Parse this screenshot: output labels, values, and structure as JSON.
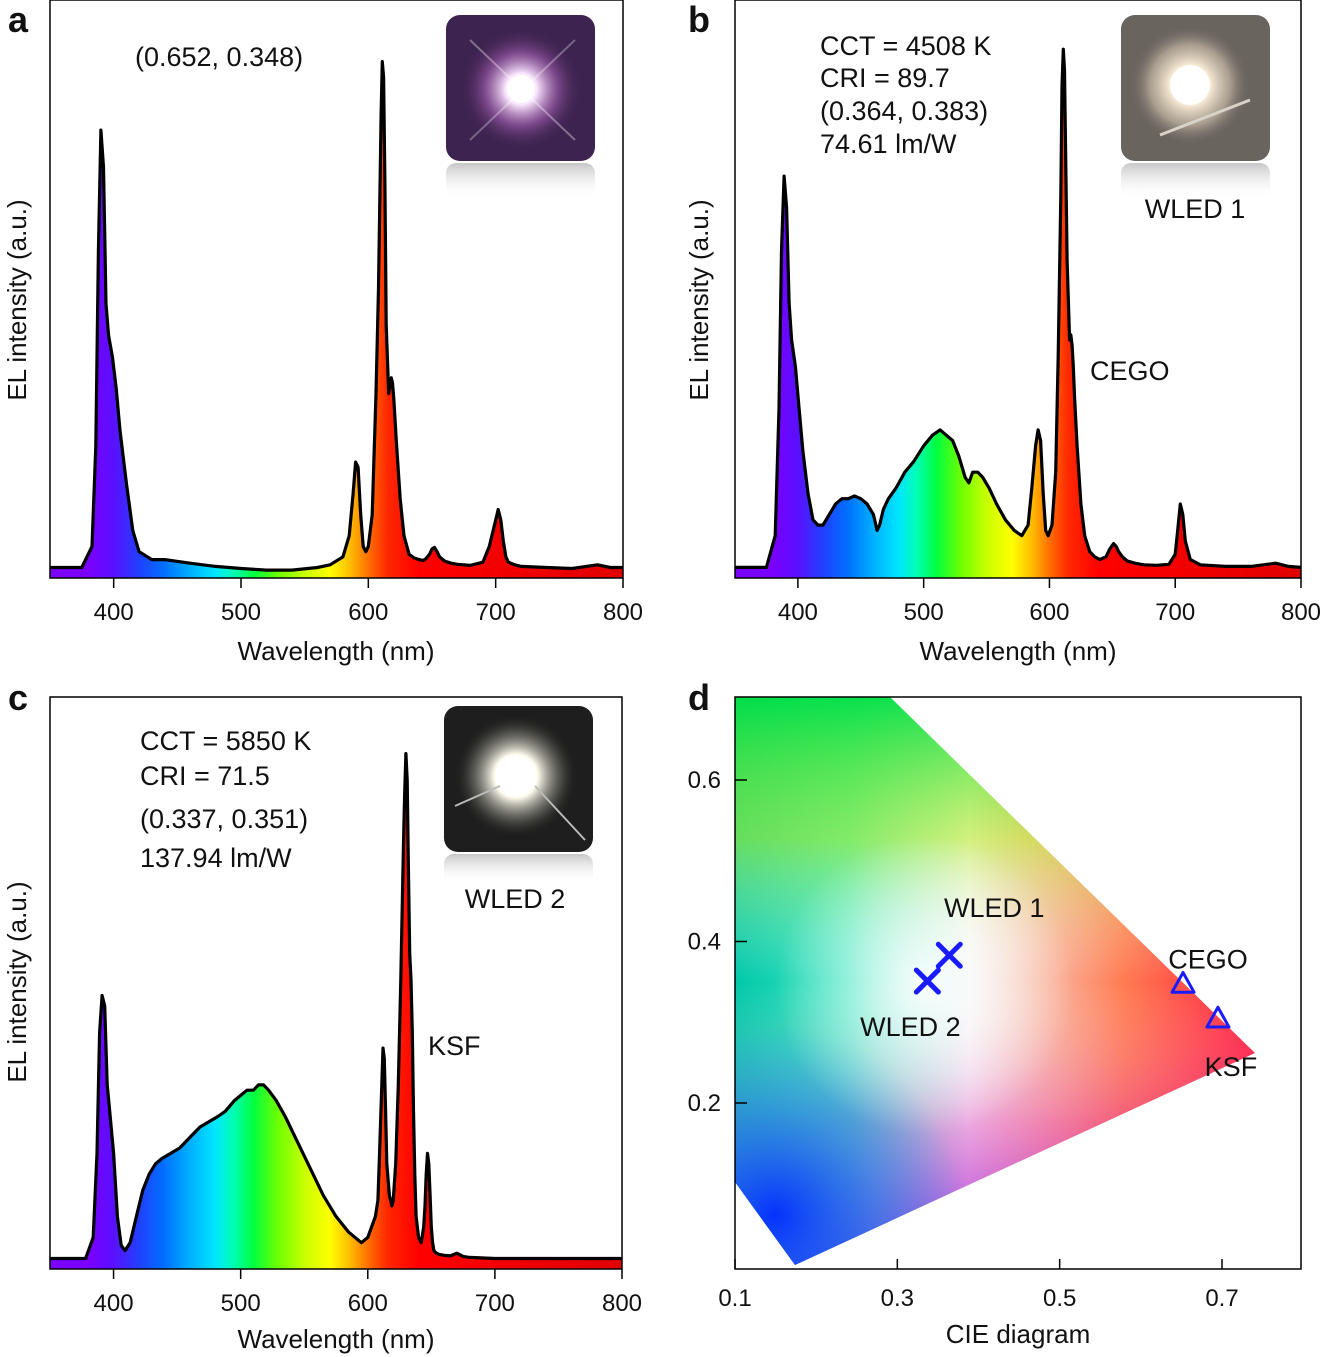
{
  "figure": {
    "panels": [
      {
        "id": "a",
        "label": "a"
      },
      {
        "id": "b",
        "label": "b"
      },
      {
        "id": "c",
        "label": "c"
      },
      {
        "id": "d",
        "label": "d"
      }
    ]
  },
  "chart_data": [
    {
      "panel": "a",
      "type": "line",
      "title": "",
      "xlabel": "Wavelength (nm)",
      "ylabel": "EL intensity (a.u.)",
      "xlim": [
        350,
        800
      ],
      "ylim": [
        0,
        1.04
      ],
      "xticks": [
        400,
        500,
        600,
        700,
        800
      ],
      "fill": "spectral",
      "annotations": [
        "(0.652, 0.348)"
      ],
      "inset": {
        "description": "LED photo (pink-purple emission)",
        "caption": ""
      },
      "series": [
        {
          "name": "EL spectrum",
          "x": [
            350,
            375,
            383,
            386,
            388,
            390,
            392,
            394,
            396,
            399,
            402,
            405,
            410,
            415,
            420,
            430,
            440,
            460,
            480,
            500,
            520,
            540,
            560,
            570,
            580,
            585,
            588,
            590,
            592,
            594,
            596,
            598,
            600,
            603,
            606,
            608,
            610,
            611,
            612,
            613,
            614,
            616,
            618,
            619,
            620,
            622,
            625,
            628,
            632,
            636,
            640,
            643,
            645,
            648,
            650,
            652,
            654,
            656,
            660,
            665,
            670,
            680,
            690,
            695,
            700,
            702,
            704,
            706,
            708,
            710,
            715,
            720,
            740,
            760,
            780,
            790,
            800
          ],
          "y": [
            0.02,
            0.02,
            0.06,
            0.25,
            0.62,
            0.85,
            0.78,
            0.52,
            0.46,
            0.42,
            0.36,
            0.28,
            0.18,
            0.09,
            0.05,
            0.035,
            0.035,
            0.028,
            0.022,
            0.018,
            0.015,
            0.015,
            0.02,
            0.025,
            0.04,
            0.08,
            0.16,
            0.22,
            0.21,
            0.12,
            0.06,
            0.05,
            0.06,
            0.12,
            0.35,
            0.55,
            0.88,
            0.98,
            0.95,
            0.75,
            0.48,
            0.35,
            0.38,
            0.37,
            0.34,
            0.26,
            0.15,
            0.08,
            0.045,
            0.038,
            0.035,
            0.033,
            0.036,
            0.045,
            0.055,
            0.058,
            0.05,
            0.04,
            0.032,
            0.028,
            0.026,
            0.024,
            0.03,
            0.06,
            0.11,
            0.13,
            0.11,
            0.07,
            0.04,
            0.03,
            0.025,
            0.022,
            0.02,
            0.018,
            0.025,
            0.02,
            0.02
          ]
        }
      ]
    },
    {
      "panel": "b",
      "type": "line",
      "title": "",
      "xlabel": "Wavelength (nm)",
      "ylabel": "EL intensity (a.u.)",
      "xlim": [
        350,
        800
      ],
      "ylim": [
        0,
        1.04
      ],
      "xticks": [
        400,
        500,
        600,
        700,
        800
      ],
      "fill": "spectral",
      "annotations": [
        "CCT = 4508 K",
        "CRI = 89.7",
        "(0.364, 0.383)",
        "74.61 lm/W",
        "CEGO"
      ],
      "inset": {
        "description": "LED photo (warm white emission)",
        "caption": "WLED 1"
      },
      "series": [
        {
          "name": "EL spectrum",
          "x": [
            350,
            375,
            382,
            385,
            387,
            389,
            391,
            393,
            395,
            398,
            401,
            404,
            408,
            412,
            416,
            420,
            425,
            430,
            435,
            440,
            445,
            450,
            455,
            460,
            463,
            465,
            468,
            472,
            478,
            485,
            492,
            500,
            507,
            513,
            518,
            523,
            528,
            533,
            536,
            539,
            543,
            547,
            552,
            558,
            565,
            572,
            578,
            583,
            586,
            589,
            591,
            593,
            595,
            597,
            599,
            602,
            605,
            607,
            609,
            610,
            611,
            612,
            614,
            616,
            617,
            618,
            619,
            620,
            622,
            625,
            628,
            632,
            636,
            640,
            645,
            648,
            651,
            653,
            655,
            658,
            662,
            668,
            675,
            685,
            695,
            700,
            702,
            704,
            706,
            708,
            712,
            720,
            740,
            760,
            780,
            790,
            800
          ],
          "y": [
            0.02,
            0.02,
            0.08,
            0.32,
            0.62,
            0.76,
            0.7,
            0.52,
            0.45,
            0.4,
            0.32,
            0.24,
            0.16,
            0.11,
            0.1,
            0.1,
            0.12,
            0.14,
            0.15,
            0.15,
            0.155,
            0.15,
            0.14,
            0.12,
            0.09,
            0.1,
            0.13,
            0.15,
            0.17,
            0.2,
            0.22,
            0.25,
            0.27,
            0.28,
            0.27,
            0.26,
            0.23,
            0.19,
            0.18,
            0.2,
            0.2,
            0.19,
            0.17,
            0.14,
            0.11,
            0.09,
            0.08,
            0.1,
            0.17,
            0.25,
            0.28,
            0.26,
            0.16,
            0.09,
            0.08,
            0.1,
            0.2,
            0.42,
            0.72,
            0.93,
            1.0,
            0.96,
            0.6,
            0.45,
            0.46,
            0.44,
            0.4,
            0.34,
            0.25,
            0.14,
            0.08,
            0.05,
            0.04,
            0.035,
            0.04,
            0.055,
            0.065,
            0.06,
            0.05,
            0.04,
            0.032,
            0.028,
            0.025,
            0.024,
            0.026,
            0.045,
            0.09,
            0.14,
            0.12,
            0.07,
            0.035,
            0.025,
            0.022,
            0.022,
            0.028,
            0.022,
            0.02
          ]
        }
      ]
    },
    {
      "panel": "c",
      "type": "line",
      "title": "",
      "xlabel": "Wavelength (nm)",
      "ylabel": "EL intensity (a.u.)",
      "xlim": [
        350,
        800
      ],
      "ylim": [
        0,
        1.04
      ],
      "xticks": [
        400,
        500,
        600,
        700,
        800
      ],
      "fill": "spectral",
      "annotations": [
        "CCT = 5850 K",
        "CRI = 71.5",
        "(0.337, 0.351)",
        "137.94 lm/W",
        "KSF"
      ],
      "inset": {
        "description": "LED photo (cool white emission)",
        "caption": "WLED 2"
      },
      "series": [
        {
          "name": "EL spectrum",
          "x": [
            350,
            378,
            384,
            387,
            389,
            391,
            393,
            395,
            397,
            400,
            403,
            406,
            409,
            413,
            418,
            423,
            428,
            433,
            438,
            445,
            452,
            460,
            468,
            475,
            482,
            488,
            495,
            500,
            505,
            510,
            514,
            518,
            522,
            528,
            535,
            545,
            555,
            565,
            575,
            585,
            595,
            600,
            603,
            606,
            608,
            609,
            611,
            612,
            613,
            614,
            615,
            617,
            619,
            620,
            622,
            624,
            626,
            628,
            629,
            630,
            631,
            632,
            633,
            634,
            635,
            636,
            637,
            638,
            640,
            642,
            644,
            645,
            646,
            647,
            648,
            649,
            650,
            651,
            652,
            654,
            656,
            660,
            665,
            670,
            675,
            680,
            700,
            720,
            740,
            760,
            780,
            800
          ],
          "y": [
            0.02,
            0.02,
            0.06,
            0.22,
            0.45,
            0.52,
            0.5,
            0.35,
            0.3,
            0.22,
            0.1,
            0.045,
            0.035,
            0.05,
            0.1,
            0.15,
            0.18,
            0.2,
            0.21,
            0.22,
            0.23,
            0.25,
            0.27,
            0.28,
            0.29,
            0.3,
            0.32,
            0.33,
            0.34,
            0.34,
            0.35,
            0.35,
            0.34,
            0.32,
            0.29,
            0.24,
            0.19,
            0.14,
            0.1,
            0.07,
            0.05,
            0.06,
            0.08,
            0.1,
            0.13,
            0.2,
            0.35,
            0.42,
            0.4,
            0.3,
            0.2,
            0.14,
            0.12,
            0.13,
            0.2,
            0.35,
            0.55,
            0.8,
            0.9,
            0.98,
            0.93,
            0.75,
            0.6,
            0.55,
            0.45,
            0.3,
            0.18,
            0.1,
            0.06,
            0.05,
            0.08,
            0.12,
            0.18,
            0.22,
            0.2,
            0.14,
            0.08,
            0.05,
            0.035,
            0.03,
            0.028,
            0.026,
            0.025,
            0.03,
            0.024,
            0.022,
            0.02,
            0.02,
            0.02,
            0.02,
            0.02,
            0.02
          ]
        }
      ]
    },
    {
      "panel": "d",
      "type": "scatter",
      "title": "",
      "xlabel": "CIE diagram",
      "ylabel": "",
      "xlim": [
        0.1,
        0.8
      ],
      "ylim": [
        0.0,
        0.7
      ],
      "xticks": [
        0.1,
        0.3,
        0.5,
        0.7
      ],
      "yticks": [
        0.2,
        0.4,
        0.6
      ],
      "background": "CIE 1931 chromaticity gamut",
      "series": [
        {
          "name": "WLED 1",
          "marker": "x",
          "x": [
            0.364
          ],
          "y": [
            0.383
          ],
          "label": "WLED 1"
        },
        {
          "name": "WLED 2",
          "marker": "x",
          "x": [
            0.337
          ],
          "y": [
            0.351
          ],
          "label": "WLED 2"
        },
        {
          "name": "CEGO",
          "marker": "triangle",
          "x": [
            0.652
          ],
          "y": [
            0.348
          ],
          "label": "CEGO"
        },
        {
          "name": "KSF",
          "marker": "triangle",
          "x": [
            0.695
          ],
          "y": [
            0.305
          ],
          "label": "KSF"
        }
      ],
      "marker_color": "#1a1aff"
    }
  ]
}
